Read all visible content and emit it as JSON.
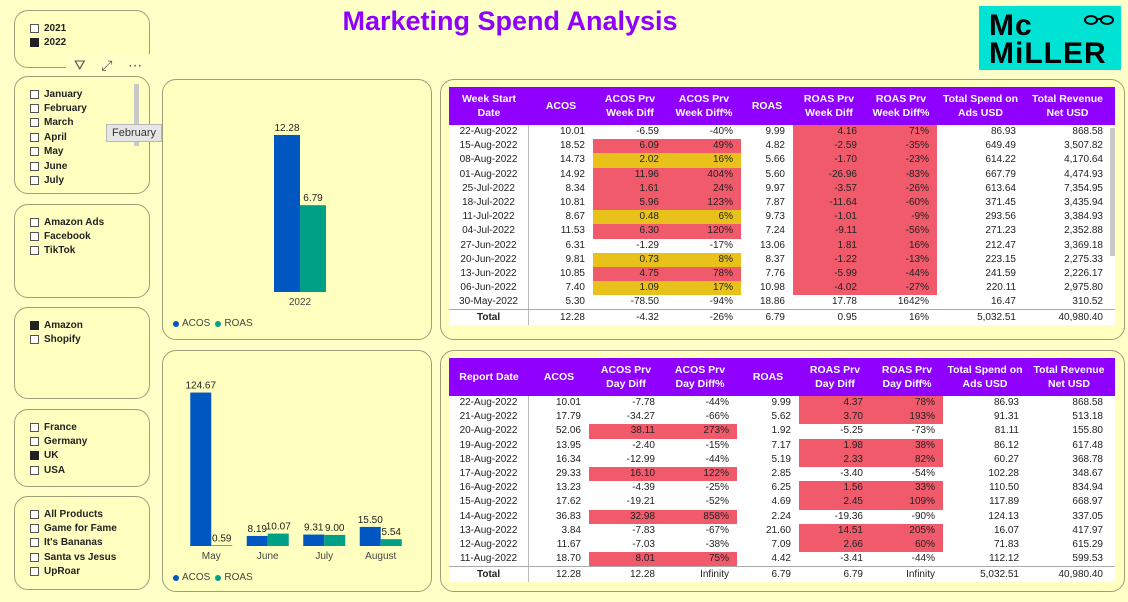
{
  "title": "Marketing Spend Analysis",
  "logo": {
    "line1": "Mc",
    "line2": "MiLLER",
    "bg": "#00e2d4"
  },
  "tooltip": "February",
  "colors": {
    "acos": "#0057c2",
    "roas": "#00a087",
    "accent": "#8f00ff",
    "red": "#f05a6b",
    "yellow": "#e8c21a"
  },
  "slicers": {
    "year": [
      {
        "label": "2021",
        "checked": false
      },
      {
        "label": "2022",
        "checked": true
      }
    ],
    "month": [
      {
        "label": "January",
        "checked": false
      },
      {
        "label": "February",
        "checked": false
      },
      {
        "label": "March",
        "checked": false
      },
      {
        "label": "April",
        "checked": false
      },
      {
        "label": "May",
        "checked": false
      },
      {
        "label": "June",
        "checked": false
      },
      {
        "label": "July",
        "checked": false
      }
    ],
    "channel": [
      {
        "label": "Amazon Ads",
        "checked": false
      },
      {
        "label": "Facebook",
        "checked": false
      },
      {
        "label": "TikTok",
        "checked": false
      }
    ],
    "store": [
      {
        "label": "Amazon",
        "checked": true
      },
      {
        "label": "Shopify",
        "checked": false
      }
    ],
    "country": [
      {
        "label": "France",
        "checked": false
      },
      {
        "label": "Germany",
        "checked": false
      },
      {
        "label": "UK",
        "checked": true
      },
      {
        "label": "USA",
        "checked": false
      }
    ],
    "product": [
      {
        "label": "All Products",
        "checked": false
      },
      {
        "label": "Game for Fame",
        "checked": false
      },
      {
        "label": "It's Bananas",
        "checked": false
      },
      {
        "label": "Santa vs Jesus",
        "checked": false
      },
      {
        "label": "UpRoar",
        "checked": false
      }
    ]
  },
  "chart_data": [
    {
      "type": "bar",
      "categories": [
        "2022"
      ],
      "series": [
        {
          "name": "ACOS",
          "values": [
            12.28
          ]
        },
        {
          "name": "ROAS",
          "values": [
            6.79
          ]
        }
      ],
      "data_labels": [
        "12.28",
        "6.79"
      ],
      "legend": [
        "ACOS",
        "ROAS"
      ],
      "ylim": [
        0,
        14
      ]
    },
    {
      "type": "bar",
      "categories": [
        "May",
        "June",
        "July",
        "August"
      ],
      "series": [
        {
          "name": "ACOS",
          "values": [
            124.67,
            8.19,
            9.31,
            15.5
          ]
        },
        {
          "name": "ROAS",
          "values": [
            0.59,
            10.07,
            9.0,
            5.54
          ]
        }
      ],
      "data_labels": [
        [
          "124.67",
          "8.19",
          "9.31",
          "15.50"
        ],
        [
          "0.59",
          "10.07",
          "9.00",
          "5.54"
        ]
      ],
      "legend": [
        "ACOS",
        "ROAS"
      ],
      "ylim": [
        0,
        130
      ]
    }
  ],
  "weekly": {
    "columns": [
      "Week Start Date",
      "ACOS",
      "ACOS Prv Week Diff",
      "ACOS Prv Week Diff%",
      "ROAS",
      "ROAS Prv Week Diff",
      "ROAS Prv Week Diff%",
      "Total Spend on Ads USD",
      "Total Revenue Net USD"
    ],
    "rows": [
      [
        "22-Aug-2022",
        "10.01",
        "-6.59",
        "-40%",
        "9.99",
        "4.16",
        "71%",
        "86.93",
        "868.58"
      ],
      [
        "15-Aug-2022",
        "18.52",
        "6.09",
        "49%",
        "4.82",
        "-2.59",
        "-35%",
        "649.49",
        "3,507.82"
      ],
      [
        "08-Aug-2022",
        "14.73",
        "2.02",
        "16%",
        "5.66",
        "-1.70",
        "-23%",
        "614.22",
        "4,170.64"
      ],
      [
        "01-Aug-2022",
        "14.92",
        "11.96",
        "404%",
        "5.60",
        "-26.96",
        "-83%",
        "667.79",
        "4,474.93"
      ],
      [
        "25-Jul-2022",
        "8.34",
        "1.61",
        "24%",
        "9.97",
        "-3.57",
        "-26%",
        "613.64",
        "7,354.95"
      ],
      [
        "18-Jul-2022",
        "10.81",
        "5.96",
        "123%",
        "7.87",
        "-11.64",
        "-60%",
        "371.45",
        "3,435.94"
      ],
      [
        "11-Jul-2022",
        "8.67",
        "0.48",
        "6%",
        "9.73",
        "-1.01",
        "-9%",
        "293.56",
        "3,384.93"
      ],
      [
        "04-Jul-2022",
        "11.53",
        "6.30",
        "120%",
        "7.24",
        "-9.11",
        "-56%",
        "271.23",
        "2,352.88"
      ],
      [
        "27-Jun-2022",
        "6.31",
        "-1.29",
        "-17%",
        "13.06",
        "1.81",
        "16%",
        "212.47",
        "3,369.18"
      ],
      [
        "20-Jun-2022",
        "9.81",
        "0.73",
        "8%",
        "8.37",
        "-1.22",
        "-13%",
        "223.15",
        "2,275.33"
      ],
      [
        "13-Jun-2022",
        "10.85",
        "4.75",
        "78%",
        "7.76",
        "-5.99",
        "-44%",
        "241.59",
        "2,226.17"
      ],
      [
        "06-Jun-2022",
        "7.40",
        "1.09",
        "17%",
        "10.98",
        "-4.02",
        "-27%",
        "220.11",
        "2,975.80"
      ],
      [
        "30-May-2022",
        "5.30",
        "-78.50",
        "-94%",
        "18.86",
        "17.78",
        "1642%",
        "16.47",
        "310.52"
      ]
    ],
    "shade": [
      [
        "",
        "",
        "",
        "",
        "",
        "red",
        "red",
        "",
        ""
      ],
      [
        "",
        "",
        "red",
        "red",
        "",
        "red",
        "red",
        "",
        ""
      ],
      [
        "",
        "",
        "yel",
        "yel",
        "",
        "red",
        "red",
        "",
        ""
      ],
      [
        "",
        "",
        "red",
        "red",
        "",
        "red",
        "red",
        "",
        ""
      ],
      [
        "",
        "",
        "red",
        "red",
        "",
        "red",
        "red",
        "",
        ""
      ],
      [
        "",
        "",
        "red",
        "red",
        "",
        "red",
        "red",
        "",
        ""
      ],
      [
        "",
        "",
        "yel",
        "yel",
        "",
        "red",
        "red",
        "",
        ""
      ],
      [
        "",
        "",
        "red",
        "red",
        "",
        "red",
        "red",
        "",
        ""
      ],
      [
        "",
        "",
        "",
        "",
        "",
        "red",
        "red",
        "",
        ""
      ],
      [
        "",
        "",
        "yel",
        "yel",
        "",
        "red",
        "red",
        "",
        ""
      ],
      [
        "",
        "",
        "red",
        "red",
        "",
        "red",
        "red",
        "",
        ""
      ],
      [
        "",
        "",
        "yel",
        "yel",
        "",
        "red",
        "red",
        "",
        ""
      ],
      [
        "",
        "",
        "",
        "",
        "",
        "",
        "",
        "",
        ""
      ]
    ],
    "total": [
      "Total",
      "12.28",
      "-4.32",
      "-26%",
      "6.79",
      "0.95",
      "16%",
      "5,032.51",
      "40,980.40"
    ]
  },
  "daily": {
    "columns": [
      "Report Date",
      "ACOS",
      "ACOS Prv Day Diff",
      "ACOS Prv Day Diff%",
      "ROAS",
      "ROAS Prv Day Diff",
      "ROAS Prv Day Diff%",
      "Total Spend on Ads USD",
      "Total Revenue Net USD"
    ],
    "rows": [
      [
        "22-Aug-2022",
        "10.01",
        "-7.78",
        "-44%",
        "9.99",
        "4.37",
        "78%",
        "86.93",
        "868.58"
      ],
      [
        "21-Aug-2022",
        "17.79",
        "-34.27",
        "-66%",
        "5.62",
        "3.70",
        "193%",
        "91.31",
        "513.18"
      ],
      [
        "20-Aug-2022",
        "52.06",
        "38.11",
        "273%",
        "1.92",
        "-5.25",
        "-73%",
        "81.11",
        "155.80"
      ],
      [
        "19-Aug-2022",
        "13.95",
        "-2.40",
        "-15%",
        "7.17",
        "1.98",
        "38%",
        "86.12",
        "617.48"
      ],
      [
        "18-Aug-2022",
        "16.34",
        "-12.99",
        "-44%",
        "5.19",
        "2.33",
        "82%",
        "60.27",
        "368.78"
      ],
      [
        "17-Aug-2022",
        "29.33",
        "16.10",
        "122%",
        "2.85",
        "-3.40",
        "-54%",
        "102.28",
        "348.67"
      ],
      [
        "16-Aug-2022",
        "13.23",
        "-4.39",
        "-25%",
        "6.25",
        "1.56",
        "33%",
        "110.50",
        "834.94"
      ],
      [
        "15-Aug-2022",
        "17.62",
        "-19.21",
        "-52%",
        "4.69",
        "2.45",
        "109%",
        "117.89",
        "668.97"
      ],
      [
        "14-Aug-2022",
        "36.83",
        "32.98",
        "858%",
        "2.24",
        "-19.36",
        "-90%",
        "124.13",
        "337.05"
      ],
      [
        "13-Aug-2022",
        "3.84",
        "-7.83",
        "-67%",
        "21.60",
        "14.51",
        "205%",
        "16.07",
        "417.97"
      ],
      [
        "12-Aug-2022",
        "11.67",
        "-7.03",
        "-38%",
        "7.09",
        "2.66",
        "60%",
        "71.83",
        "615.29"
      ],
      [
        "11-Aug-2022",
        "18.70",
        "8.01",
        "75%",
        "4.42",
        "-3.41",
        "-44%",
        "112.12",
        "599.53"
      ]
    ],
    "shade": [
      [
        "",
        "",
        "",
        "",
        "",
        "red",
        "red",
        "",
        ""
      ],
      [
        "",
        "",
        "",
        "",
        "",
        "red",
        "red",
        "",
        ""
      ],
      [
        "",
        "",
        "red",
        "red",
        "",
        "",
        "",
        "",
        ""
      ],
      [
        "",
        "",
        "",
        "",
        "",
        "red",
        "red",
        "",
        ""
      ],
      [
        "",
        "",
        "",
        "",
        "",
        "red",
        "red",
        "",
        ""
      ],
      [
        "",
        "",
        "red",
        "red",
        "",
        "",
        "",
        "",
        ""
      ],
      [
        "",
        "",
        "",
        "",
        "",
        "red",
        "red",
        "",
        ""
      ],
      [
        "",
        "",
        "",
        "",
        "",
        "red",
        "red",
        "",
        ""
      ],
      [
        "",
        "",
        "red",
        "red",
        "",
        "",
        "",
        "",
        ""
      ],
      [
        "",
        "",
        "",
        "",
        "",
        "red",
        "red",
        "",
        ""
      ],
      [
        "",
        "",
        "",
        "",
        "",
        "red",
        "red",
        "",
        ""
      ],
      [
        "",
        "",
        "red",
        "red",
        "",
        "",
        "",
        "",
        ""
      ]
    ],
    "total": [
      "Total",
      "12.28",
      "12.28",
      "Infinity",
      "6.79",
      "6.79",
      "Infinity",
      "5,032.51",
      "40,980.40"
    ]
  }
}
